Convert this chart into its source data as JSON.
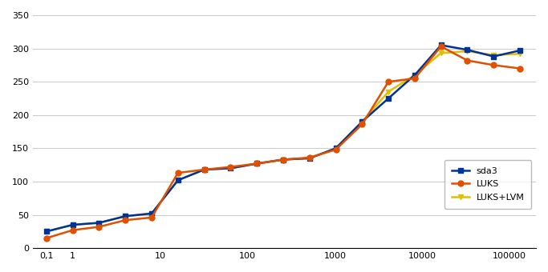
{
  "sda3_x": [
    0.5,
    1,
    2,
    4,
    8,
    16,
    32,
    64,
    128,
    256,
    512,
    1024,
    2048,
    4096,
    8192,
    16384,
    32768,
    65536,
    131072
  ],
  "sda3_y": [
    25,
    35,
    38,
    48,
    52,
    102,
    118,
    120,
    127,
    133,
    135,
    150,
    190,
    225,
    260,
    305,
    298,
    288,
    297
  ],
  "luks_x": [
    0.5,
    1,
    2,
    4,
    8,
    16,
    32,
    64,
    128,
    256,
    512,
    1024,
    2048,
    4096,
    8192,
    16384,
    32768,
    65536,
    131072
  ],
  "luks_y": [
    15,
    27,
    32,
    42,
    46,
    113,
    118,
    122,
    127,
    133,
    136,
    148,
    186,
    250,
    255,
    303,
    282,
    275,
    270
  ],
  "lukslvm_x": [
    0.5,
    1,
    2,
    4,
    8,
    16,
    32,
    64,
    128,
    256,
    512,
    1024,
    2048,
    4096,
    8192,
    16384,
    32768,
    65536,
    131072
  ],
  "lukslvm_y": [
    25,
    35,
    38,
    48,
    52,
    102,
    118,
    120,
    127,
    133,
    135,
    150,
    190,
    235,
    260,
    293,
    296,
    290,
    292
  ],
  "sda3_color": "#003399",
  "luks_color": "#e05000",
  "lukslvm_color": "#e0c000",
  "sda3_label": "sda3",
  "luks_label": "LUKS",
  "lukslvm_label": "LUKS+LVM",
  "ylim": [
    0,
    350
  ],
  "yticks": [
    0,
    50,
    100,
    150,
    200,
    250,
    300,
    350
  ],
  "xlim_min": 0.35,
  "xlim_max": 200000,
  "background_color": "#ffffff",
  "grid_color": "#cccccc"
}
